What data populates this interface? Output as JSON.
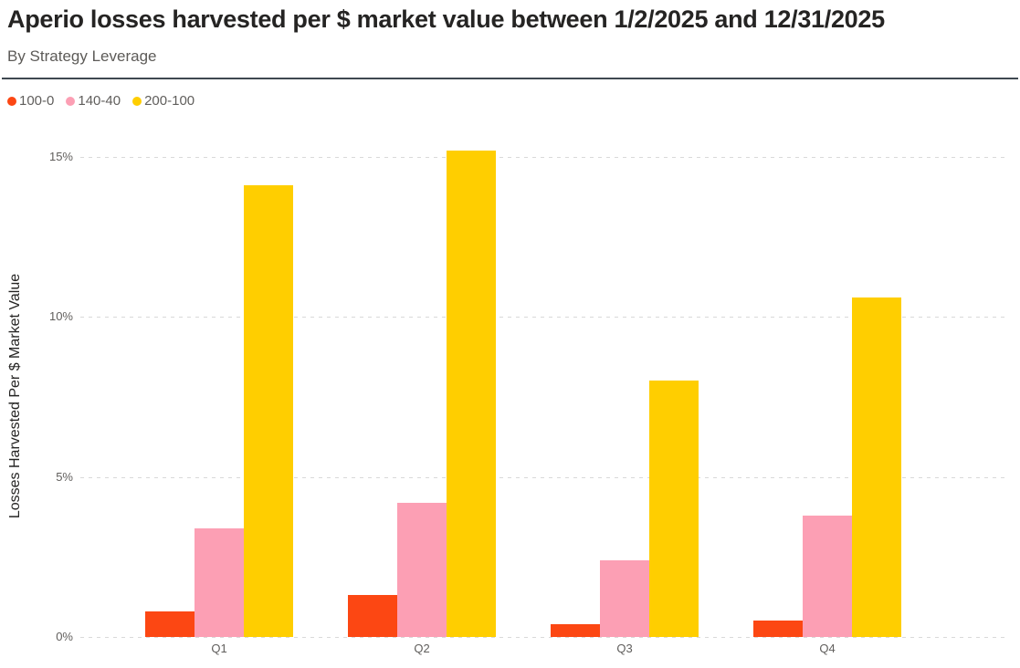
{
  "page": {
    "title": "Aperio losses harvested per $ market value between 1/2/2025 and 12/31/2025",
    "subtitle": "By Strategy Leverage"
  },
  "colors": {
    "title_text": "#252423",
    "muted_text": "#605E5C",
    "gridline": "#D9D9D9",
    "divider": "#3F4850",
    "background": "#FFFFFF"
  },
  "chart_data": {
    "type": "bar",
    "title": "Aperio losses harvested per $ market value between 1/2/2025 and 12/31/2025",
    "subtitle": "By Strategy Leverage",
    "categories": [
      "Q1",
      "Q2",
      "Q3",
      "Q4"
    ],
    "series": [
      {
        "name": "100-0",
        "color": "#FC4713",
        "values": [
          0.8,
          1.3,
          0.4,
          0.5
        ]
      },
      {
        "name": "140-40",
        "color": "#FC9FB4",
        "values": [
          3.4,
          4.2,
          2.4,
          3.8
        ]
      },
      {
        "name": "200-100",
        "color": "#FFCE00",
        "values": [
          14.1,
          15.2,
          8.0,
          10.6
        ]
      }
    ],
    "xlabel": "",
    "ylabel": "Losses Harvested Per $ Market Value",
    "y_ticks": [
      {
        "value": 0,
        "label": "0%"
      },
      {
        "value": 5,
        "label": "5%"
      },
      {
        "value": 10,
        "label": "10%"
      },
      {
        "value": 15,
        "label": "15%"
      }
    ],
    "ylim": [
      0,
      15.65
    ],
    "grid": "horizontal-dashed",
    "legend_position": "top-left"
  }
}
